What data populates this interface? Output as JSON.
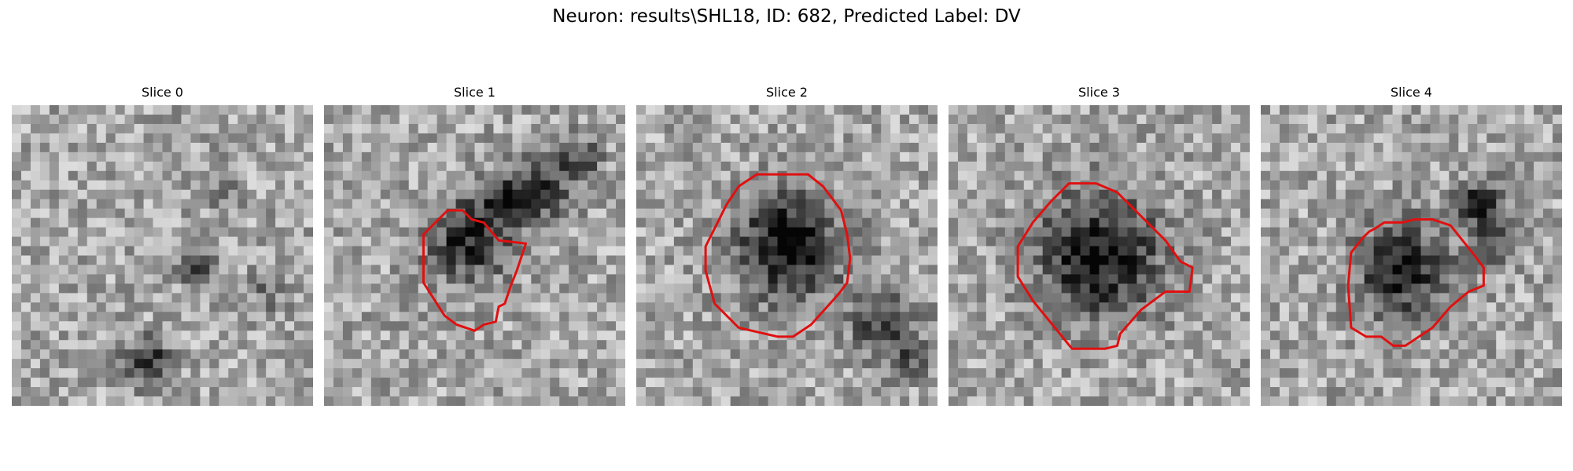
{
  "figure": {
    "title": "Neuron: results\\SHL18, ID: 682, Predicted Label: DV",
    "grid_size": 32,
    "contour_color": "#e01010",
    "slices": [
      {
        "title": "Slice 0",
        "dark_regions": [
          [
            0.45,
            0.85,
            0.08,
            0.5
          ],
          [
            0.62,
            0.55,
            0.07,
            0.35
          ],
          [
            0.85,
            0.62,
            0.06,
            0.25
          ],
          [
            0.7,
            0.3,
            0.06,
            0.2
          ]
        ],
        "contour": []
      },
      {
        "title": "Slice 1",
        "dark_regions": [
          [
            0.48,
            0.45,
            0.15,
            0.5
          ],
          [
            0.72,
            0.28,
            0.12,
            0.4
          ],
          [
            0.85,
            0.18,
            0.08,
            0.35
          ],
          [
            0.6,
            0.32,
            0.1,
            0.3
          ]
        ],
        "contour": [
          [
            0.33,
            0.43
          ],
          [
            0.41,
            0.35
          ],
          [
            0.46,
            0.35
          ],
          [
            0.49,
            0.38
          ],
          [
            0.53,
            0.39
          ],
          [
            0.58,
            0.45
          ],
          [
            0.67,
            0.46
          ],
          [
            0.64,
            0.55
          ],
          [
            0.62,
            0.6
          ],
          [
            0.6,
            0.66
          ],
          [
            0.58,
            0.67
          ],
          [
            0.57,
            0.72
          ],
          [
            0.53,
            0.73
          ],
          [
            0.5,
            0.75
          ],
          [
            0.47,
            0.74
          ],
          [
            0.44,
            0.73
          ],
          [
            0.4,
            0.7
          ],
          [
            0.33,
            0.59
          ]
        ]
      },
      {
        "title": "Slice 2",
        "dark_regions": [
          [
            0.5,
            0.47,
            0.19,
            0.62
          ],
          [
            0.82,
            0.72,
            0.12,
            0.45
          ],
          [
            0.9,
            0.85,
            0.07,
            0.3
          ]
        ],
        "contour": [
          [
            0.3,
            0.33
          ],
          [
            0.34,
            0.27
          ],
          [
            0.4,
            0.23
          ],
          [
            0.57,
            0.23
          ],
          [
            0.62,
            0.27
          ],
          [
            0.68,
            0.35
          ],
          [
            0.7,
            0.43
          ],
          [
            0.71,
            0.51
          ],
          [
            0.7,
            0.59
          ],
          [
            0.67,
            0.63
          ],
          [
            0.58,
            0.73
          ],
          [
            0.52,
            0.77
          ],
          [
            0.47,
            0.77
          ],
          [
            0.34,
            0.74
          ],
          [
            0.26,
            0.66
          ],
          [
            0.23,
            0.55
          ],
          [
            0.23,
            0.47
          ],
          [
            0.26,
            0.41
          ]
        ]
      },
      {
        "title": "Slice 3",
        "dark_regions": [
          [
            0.5,
            0.5,
            0.22,
            0.62
          ]
        ],
        "contour": [
          [
            0.28,
            0.39
          ],
          [
            0.34,
            0.32
          ],
          [
            0.4,
            0.26
          ],
          [
            0.49,
            0.26
          ],
          [
            0.56,
            0.29
          ],
          [
            0.61,
            0.34
          ],
          [
            0.72,
            0.45
          ],
          [
            0.77,
            0.52
          ],
          [
            0.81,
            0.54
          ],
          [
            0.8,
            0.62
          ],
          [
            0.72,
            0.62
          ],
          [
            0.64,
            0.68
          ],
          [
            0.57,
            0.76
          ],
          [
            0.56,
            0.8
          ],
          [
            0.52,
            0.81
          ],
          [
            0.41,
            0.81
          ],
          [
            0.28,
            0.65
          ],
          [
            0.23,
            0.57
          ],
          [
            0.23,
            0.47
          ]
        ]
      },
      {
        "title": "Slice 4",
        "dark_regions": [
          [
            0.47,
            0.55,
            0.17,
            0.55
          ],
          [
            0.73,
            0.32,
            0.08,
            0.55
          ],
          [
            0.78,
            0.45,
            0.09,
            0.35
          ]
        ],
        "contour": [
          [
            0.3,
            0.49
          ],
          [
            0.34,
            0.44
          ],
          [
            0.36,
            0.42
          ],
          [
            0.38,
            0.41
          ],
          [
            0.41,
            0.39
          ],
          [
            0.47,
            0.39
          ],
          [
            0.51,
            0.38
          ],
          [
            0.57,
            0.38
          ],
          [
            0.63,
            0.4
          ],
          [
            0.67,
            0.45
          ],
          [
            0.71,
            0.5
          ],
          [
            0.74,
            0.54
          ],
          [
            0.74,
            0.6
          ],
          [
            0.69,
            0.62
          ],
          [
            0.63,
            0.67
          ],
          [
            0.57,
            0.74
          ],
          [
            0.51,
            0.78
          ],
          [
            0.48,
            0.8
          ],
          [
            0.44,
            0.8
          ],
          [
            0.4,
            0.77
          ],
          [
            0.35,
            0.77
          ],
          [
            0.3,
            0.74
          ],
          [
            0.29,
            0.6
          ]
        ]
      }
    ]
  }
}
